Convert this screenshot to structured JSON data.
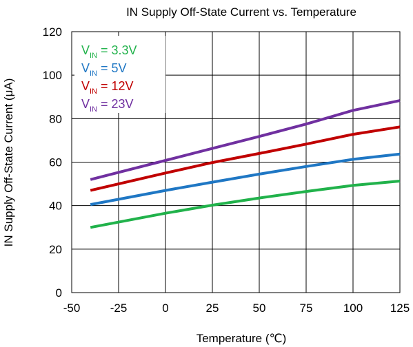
{
  "chart_data": {
    "type": "line",
    "title": "IN Supply Off-State Current vs. Temperature",
    "xlabel": "Temperature (℃)",
    "ylabel": "IN Supply Off-State Current (μA)",
    "xlim": [
      -50,
      125
    ],
    "ylim": [
      0,
      120
    ],
    "xticks": [
      -50,
      -25,
      0,
      25,
      50,
      75,
      100,
      125
    ],
    "yticks": [
      0,
      20,
      40,
      60,
      80,
      100,
      120
    ],
    "grid": true,
    "legend_position": "top-left",
    "x": [
      -40,
      0,
      25,
      50,
      75,
      100,
      125
    ],
    "series": [
      {
        "name_main": "V",
        "name_sub": "IN",
        "name_rest": " = 3.3V",
        "color": "#21b24b",
        "values": [
          30,
          36.5,
          40.2,
          43.5,
          46.5,
          49.3,
          51.3
        ]
      },
      {
        "name_main": "V",
        "name_sub": "IN",
        "name_rest": " = 5V",
        "color": "#1f77c4",
        "values": [
          40.5,
          47,
          50.8,
          54.5,
          58,
          61.3,
          63.7
        ]
      },
      {
        "name_main": "V",
        "name_sub": "IN",
        "name_rest": " = 12V",
        "color": "#c00000",
        "values": [
          47,
          55,
          59.8,
          64,
          68.3,
          72.8,
          76.2
        ]
      },
      {
        "name_main": "V",
        "name_sub": "IN",
        "name_rest": " = 23V",
        "color": "#7030a0",
        "values": [
          52,
          60.8,
          66.3,
          71.8,
          77.5,
          83.8,
          88.3
        ]
      }
    ]
  }
}
